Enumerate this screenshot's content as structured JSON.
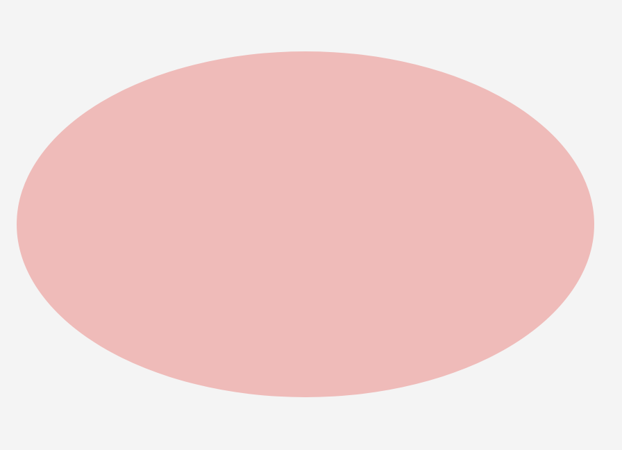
{
  "colors": {
    "background": "#f4f4f4",
    "ellipse_fill": "#efbbb9"
  },
  "shapes": [
    {
      "kind": "ellipse",
      "label": ""
    }
  ]
}
